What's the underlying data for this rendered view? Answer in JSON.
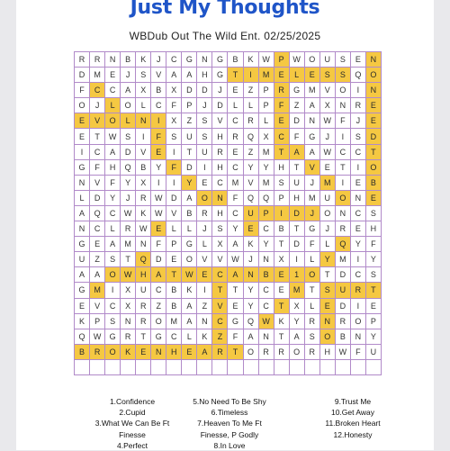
{
  "title": "Just My Thoughts",
  "subtitle": "WBDub  Out The Wild Ent. 02/25/2025",
  "highlight_color": "#f5c842",
  "title_color": "#1f55c8",
  "grid": [
    "RRNBKJCGNGBKWPWOUSEN",
    "DMEJSVAAHGTIMELESSQO",
    "FCCAXBXDDJEZPRGMVOIN",
    "OJLOLCFPJDLLPFZAXNRE",
    "EVOLNIXZSVCRLEDNWFJE",
    "ETWSIFSUSHRQXCFGJISD",
    "ICADVEITUREZMTAAWCCT",
    "GFHQBYFDIHCYYHTVETIO",
    "NVFYXIIYECMVMSUJMIEB",
    "LDYJRWDAONFQQPHMUONE",
    "AQCWKWVBRHCUPIDJONCS",
    "NCLRWELLJSYECBTGJREH",
    "GEAMNFPGLXAKYTDFLQYF",
    "UZSTQDEOVVWJNXILYMIY",
    "AAOWHATWECANBE1OTDCS",
    "GMIXUCBKITTYCEMTSURT",
    "EVCXRZBAZVEYCTXLEDIE",
    "KPSNROMANCGQWKYRNROP",
    "QWGRTGCLKZFANTASOBNY",
    "BROKENHEARTORRORHWFU"
  ],
  "highlights": [
    [
      0,
      19
    ],
    [
      1,
      19
    ],
    [
      2,
      19
    ],
    [
      3,
      19
    ],
    [
      4,
      19
    ],
    [
      5,
      19
    ],
    [
      6,
      19
    ],
    [
      7,
      19
    ],
    [
      8,
      19
    ],
    [
      9,
      19
    ],
    [
      1,
      10
    ],
    [
      1,
      11
    ],
    [
      1,
      12
    ],
    [
      1,
      13
    ],
    [
      1,
      14
    ],
    [
      1,
      15
    ],
    [
      1,
      16
    ],
    [
      1,
      17
    ],
    [
      0,
      13
    ],
    [
      1,
      13
    ],
    [
      2,
      13
    ],
    [
      3,
      13
    ],
    [
      4,
      13
    ],
    [
      5,
      13
    ],
    [
      6,
      13
    ],
    [
      2,
      1
    ],
    [
      3,
      2
    ],
    [
      4,
      3
    ],
    [
      4,
      0
    ],
    [
      4,
      1
    ],
    [
      4,
      2
    ],
    [
      4,
      3
    ],
    [
      4,
      4
    ],
    [
      4,
      5
    ],
    [
      5,
      5
    ],
    [
      6,
      5
    ],
    [
      7,
      6
    ],
    [
      8,
      7
    ],
    [
      9,
      8
    ],
    [
      9,
      9
    ],
    [
      10,
      11
    ],
    [
      10,
      12
    ],
    [
      10,
      13
    ],
    [
      10,
      14
    ],
    [
      10,
      15
    ],
    [
      11,
      5
    ],
    [
      11,
      11
    ],
    [
      12,
      17
    ],
    [
      13,
      16
    ],
    [
      14,
      15
    ],
    [
      15,
      14
    ],
    [
      16,
      13
    ],
    [
      17,
      12
    ],
    [
      13,
      4
    ],
    [
      14,
      2
    ],
    [
      14,
      3
    ],
    [
      14,
      4
    ],
    [
      14,
      5
    ],
    [
      14,
      6
    ],
    [
      14,
      7
    ],
    [
      14,
      8
    ],
    [
      14,
      9
    ],
    [
      14,
      10
    ],
    [
      14,
      11
    ],
    [
      14,
      12
    ],
    [
      14,
      13
    ],
    [
      14,
      14
    ],
    [
      14,
      15
    ],
    [
      15,
      1
    ],
    [
      15,
      9
    ],
    [
      15,
      16
    ],
    [
      15,
      17
    ],
    [
      15,
      18
    ],
    [
      15,
      19
    ],
    [
      16,
      9
    ],
    [
      16,
      16
    ],
    [
      17,
      9
    ],
    [
      17,
      16
    ],
    [
      18,
      9
    ],
    [
      18,
      16
    ],
    [
      19,
      0
    ],
    [
      19,
      1
    ],
    [
      19,
      2
    ],
    [
      19,
      3
    ],
    [
      19,
      4
    ],
    [
      19,
      5
    ],
    [
      19,
      6
    ],
    [
      19,
      7
    ],
    [
      19,
      8
    ],
    [
      19,
      9
    ],
    [
      19,
      10
    ],
    [
      6,
      14
    ],
    [
      7,
      15
    ],
    [
      8,
      16
    ],
    [
      9,
      17
    ]
  ],
  "word_list": {
    "col1": [
      "1.Confidence",
      "2.Cupid",
      "3.What We Can Be Ft",
      "Finesse",
      "4.Perfect"
    ],
    "col2": [
      "5.No Need To Be Shy",
      "6.Timeless",
      "7.Heaven To Me Ft",
      "Finesse, P Godly",
      "8.In Love"
    ],
    "col3": [
      "9.Trust Me",
      "10.Get Away",
      "11.Broken Heart",
      "12.Honesty"
    ]
  }
}
